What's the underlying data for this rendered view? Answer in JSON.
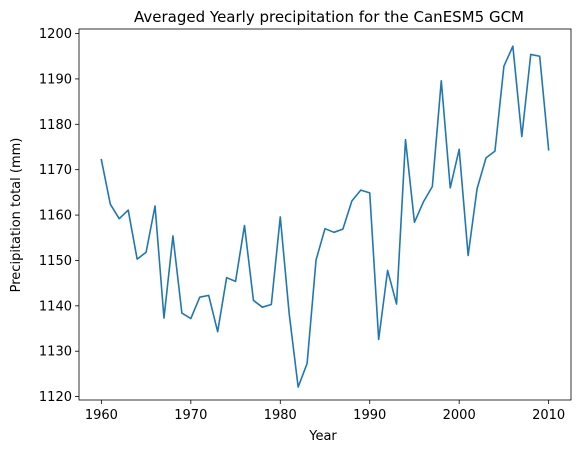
{
  "chart_data": {
    "type": "line",
    "title": "Averaged Yearly precipitation for the CanESM5 GCM",
    "xlabel": "Year",
    "ylabel": "Precipitation total (mm)",
    "xlim": [
      1957.5,
      2012.5
    ],
    "ylim": [
      1119.25,
      1201.0
    ],
    "xticks": [
      1960,
      1970,
      1980,
      1990,
      2000,
      2010
    ],
    "yticks": [
      1120,
      1130,
      1140,
      1150,
      1160,
      1170,
      1180,
      1190,
      1200
    ],
    "grid": false,
    "series": [
      {
        "color": "#1f77b4",
        "x": [
          1960,
          1961,
          1962,
          1963,
          1964,
          1965,
          1966,
          1967,
          1968,
          1969,
          1970,
          1971,
          1972,
          1973,
          1974,
          1975,
          1976,
          1977,
          1978,
          1979,
          1980,
          1981,
          1982,
          1983,
          1984,
          1985,
          1986,
          1987,
          1988,
          1989,
          1990,
          1991,
          1992,
          1993,
          1994,
          1995,
          1996,
          1997,
          1998,
          1999,
          2000,
          2001,
          2002,
          2003,
          2004,
          2005,
          2006,
          2007,
          2008,
          2009,
          2010
        ],
        "values": [
          1172.2,
          1162.4,
          1159.2,
          1161.1,
          1150.3,
          1151.8,
          1162.0,
          1137.3,
          1155.4,
          1138.4,
          1137.2,
          1141.9,
          1142.3,
          1134.3,
          1146.2,
          1145.4,
          1157.7,
          1141.2,
          1139.7,
          1140.3,
          1159.6,
          1138.2,
          1122.1,
          1127.3,
          1150.1,
          1157.0,
          1156.2,
          1156.9,
          1163.1,
          1165.5,
          1164.9,
          1132.6,
          1147.8,
          1140.4,
          1176.6,
          1158.4,
          1162.9,
          1166.3,
          1189.6,
          1166.0,
          1174.5,
          1151.1,
          1165.8,
          1172.6,
          1174.1,
          1192.8,
          1197.2,
          1177.3,
          1195.4,
          1195.0,
          1174.4
        ]
      }
    ]
  }
}
